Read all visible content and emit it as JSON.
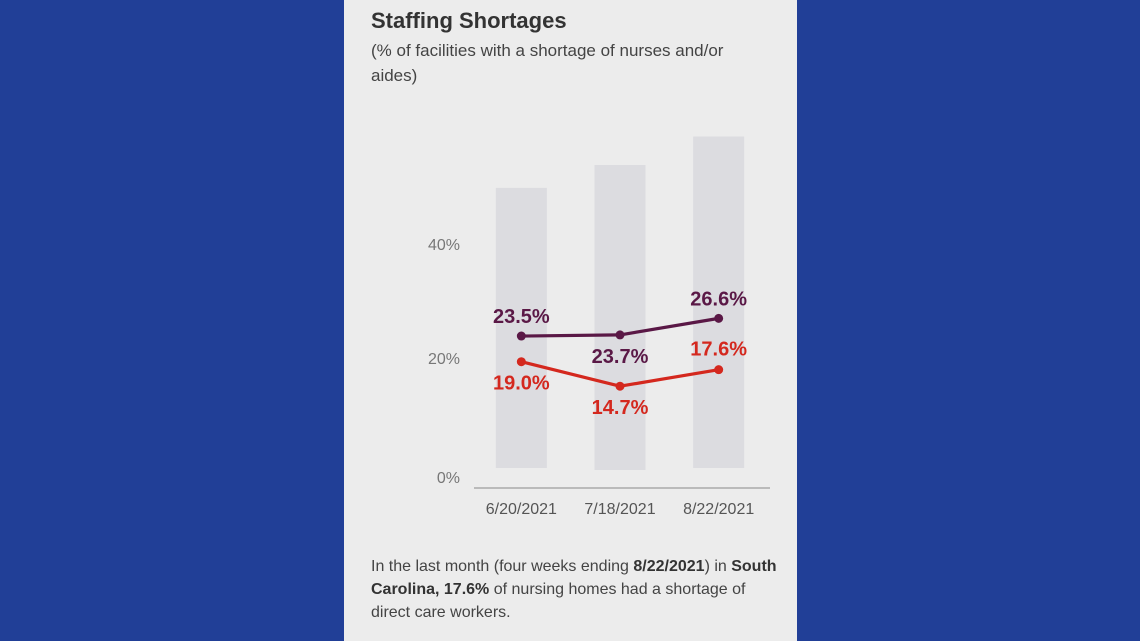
{
  "colors": {
    "frame": "#213f97",
    "panel": "#ececec",
    "bar": "#dcdce0",
    "nurses_aides": "#5a1846",
    "direct_care": "#d4281e"
  },
  "chart_data": {
    "type": "line",
    "title": "Staffing Shortages",
    "subtitle": "(% of facilities with a shortage of nurses and/or aides)",
    "categories": [
      "6/20/2021",
      "7/18/2021",
      "8/22/2021"
    ],
    "y_tick_labels": [
      "0%",
      "20%",
      "40%"
    ],
    "y_ticks": [
      0,
      20,
      40
    ],
    "ylim": [
      0,
      53
    ],
    "background_bars": [
      49.5,
      53.5,
      58.5
    ],
    "series": [
      {
        "values": [
          23.5,
          23.7,
          26.6
        ],
        "labels": [
          "23.5%",
          "23.7%",
          "26.6%"
        ],
        "color": "#5a1846"
      },
      {
        "values": [
          19.0,
          14.7,
          17.6
        ],
        "labels": [
          "19.0%",
          "14.7%",
          "17.6%"
        ],
        "color": "#d4281e"
      }
    ],
    "grid": false
  },
  "footnote": {
    "part1": "In the last month (four weeks ending ",
    "date": "8/22/2021",
    "part2": ") in ",
    "state": "South Carolina, 17.6%",
    "part3": " of nursing homes had a shortage of direct care workers."
  }
}
